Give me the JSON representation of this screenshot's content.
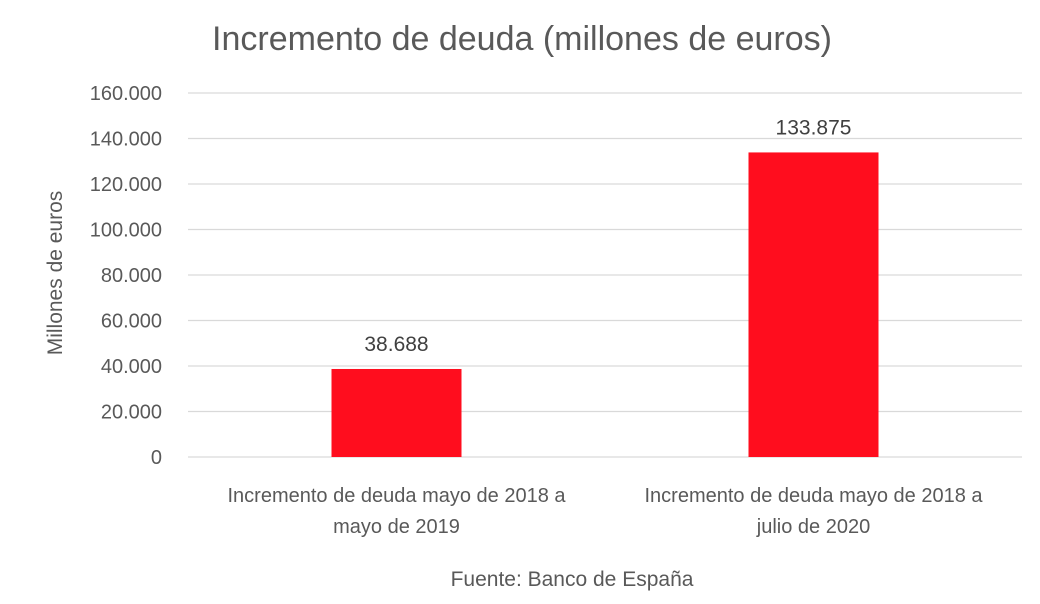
{
  "chart_data": {
    "type": "bar",
    "title": "Incremento de deuda (millones de euros)",
    "ylabel": "Millones de euros",
    "xlabel": "",
    "ylim": [
      0,
      160000
    ],
    "yticks": [
      0,
      20000,
      40000,
      60000,
      80000,
      100000,
      120000,
      140000,
      160000
    ],
    "ytick_labels": [
      "0",
      "20.000",
      "40.000",
      "60.000",
      "80.000",
      "100.000",
      "120.000",
      "140.000",
      "160.000"
    ],
    "categories": [
      [
        "Incremento de deuda mayo de 2018 a",
        "mayo de 2019"
      ],
      [
        "Incremento de deuda mayo de 2018 a",
        "julio de 2020"
      ]
    ],
    "values": [
      38688,
      133875
    ],
    "data_labels": [
      "38.688",
      "133.875"
    ],
    "bar_color": "#ff0d1e",
    "grid": true,
    "legend": "none",
    "source": "Fuente: Banco de España"
  }
}
